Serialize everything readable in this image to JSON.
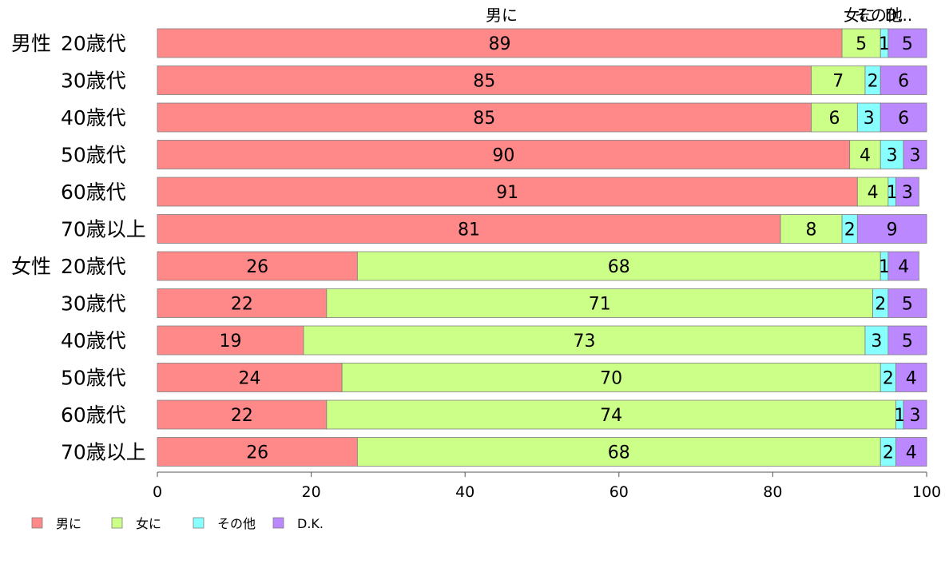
{
  "chart_data": {
    "type": "bar",
    "orientation": "horizontal",
    "stacked": true,
    "categories": [
      {
        "group": "男性",
        "label": "20歳代"
      },
      {
        "group": "",
        "label": "30歳代"
      },
      {
        "group": "",
        "label": "40歳代"
      },
      {
        "group": "",
        "label": "50歳代"
      },
      {
        "group": "",
        "label": "60歳代"
      },
      {
        "group": "",
        "label": "70歳以上"
      },
      {
        "group": "女性",
        "label": "20歳代"
      },
      {
        "group": "",
        "label": "30歳代"
      },
      {
        "group": "",
        "label": "40歳代"
      },
      {
        "group": "",
        "label": "50歳代"
      },
      {
        "group": "",
        "label": "60歳代"
      },
      {
        "group": "",
        "label": "70歳以上"
      }
    ],
    "series": [
      {
        "name": "男に",
        "color": "#ff8888",
        "values": [
          89,
          85,
          85,
          90,
          91,
          81,
          26,
          22,
          19,
          24,
          22,
          26
        ]
      },
      {
        "name": "女に",
        "color": "#ccff88",
        "values": [
          5,
          7,
          6,
          4,
          4,
          8,
          68,
          71,
          73,
          70,
          74,
          68
        ]
      },
      {
        "name": "その他",
        "color": "#88ffff",
        "values": [
          1,
          2,
          3,
          3,
          1,
          2,
          1,
          2,
          3,
          2,
          1,
          2
        ]
      },
      {
        "name": "D.K.",
        "color": "#bb88ff",
        "values": [
          5,
          6,
          6,
          3,
          3,
          9,
          4,
          5,
          5,
          4,
          3,
          4
        ]
      }
    ],
    "top_labels": [
      "男に",
      "女に",
      "その他",
      "D..."
    ],
    "xticks": [
      "0",
      "20",
      "40",
      "60",
      "80",
      "100"
    ],
    "xlim": [
      0,
      100
    ],
    "legend_position": "bottom-left",
    "grid": false,
    "title": "",
    "xlabel": "",
    "ylabel": ""
  }
}
